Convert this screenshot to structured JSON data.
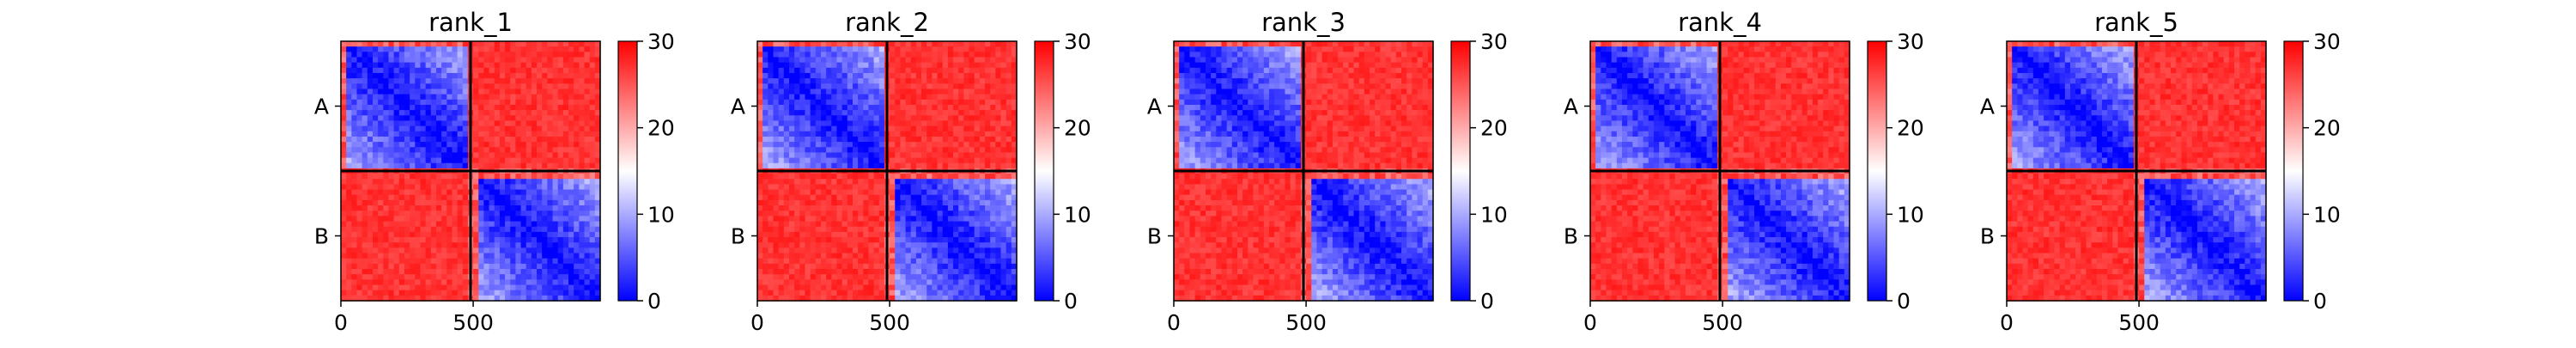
{
  "colors": {
    "intra_chain_low": "#0000ff",
    "mid": "#ffffff",
    "inter_chain_high": "#ff0000",
    "chain_separator": "#000000"
  },
  "chart_data": {
    "type": "heatmap",
    "description_of_panels": "Five predicted aligned error (PAE) style heatmaps, one per model rank; two chains A and B of roughly 490 residues each",
    "shared": {
      "x_ticks": [
        0,
        500
      ],
      "y_tick_labels": [
        "A",
        "B"
      ],
      "x_range": [
        0,
        980
      ],
      "chain_boundary": 490,
      "colorbar": {
        "min": 0,
        "max": 30,
        "ticks": [
          0,
          10,
          20,
          30
        ],
        "colormap": "bwr"
      }
    },
    "panels": [
      {
        "title": "rank_1",
        "intra_chain_value": 9,
        "inter_chain_value": 29
      },
      {
        "title": "rank_2",
        "intra_chain_value": 9,
        "inter_chain_value": 29
      },
      {
        "title": "rank_3",
        "intra_chain_value": 9,
        "inter_chain_value": 29
      },
      {
        "title": "rank_4",
        "intra_chain_value": 9,
        "inter_chain_value": 29
      },
      {
        "title": "rank_5",
        "intra_chain_value": 9,
        "inter_chain_value": 29
      }
    ]
  }
}
